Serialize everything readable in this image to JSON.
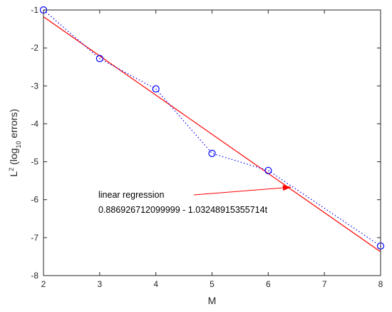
{
  "chart_data": {
    "type": "line",
    "xlabel": "M",
    "ylabel": {
      "base": "L",
      "sup": "2",
      "open": " (log",
      "sub": "10",
      "close": " errors)"
    },
    "xlim": [
      2,
      8
    ],
    "ylim": [
      -8,
      -1
    ],
    "xticks": [
      2,
      3,
      4,
      5,
      6,
      7,
      8
    ],
    "yticks": [
      -1,
      -2,
      -3,
      -4,
      -5,
      -6,
      -7,
      -8
    ],
    "grid": false,
    "series": [
      {
        "style": "dotted-circles",
        "color": "#0000ff",
        "x": [
          2,
          3,
          4,
          5,
          6,
          8
        ],
        "y": [
          -1.0,
          -2.28,
          -3.08,
          -4.78,
          -5.23,
          -7.22
        ]
      },
      {
        "style": "solid",
        "color": "#ff0000",
        "intercept": 0.886926712099999,
        "slope": -1.03248915355714
      }
    ],
    "annotation": {
      "line1": "linear regression",
      "line2": "0.886926712099999 - 1.03248915355714t",
      "arrow_target": [
        6.4,
        -5.67
      ],
      "color": "#ff0000"
    }
  }
}
